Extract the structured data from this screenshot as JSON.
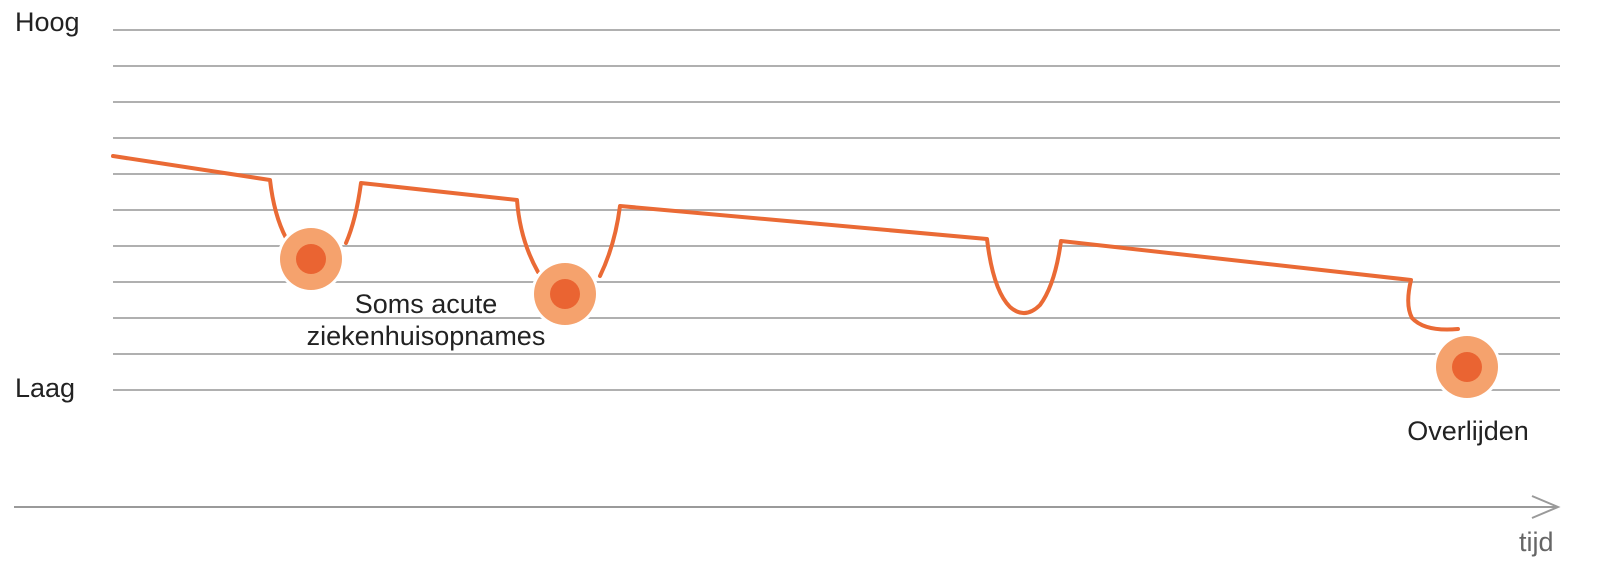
{
  "y_axis": {
    "high_label": "Hoog",
    "low_label": "Laag"
  },
  "x_axis": {
    "label": "tijd"
  },
  "annotations": {
    "hospital": "Soms acute\nziekenhuisopnames",
    "death": "Overlijden"
  },
  "colors": {
    "curve": "#EA6A35",
    "marker_outer": "#F5A26D",
    "marker_inner": "#EA6432",
    "gridline": "#B0B0B0",
    "axis": "#9A9A9A"
  },
  "icons": {
    "event_marker": "orange-dot-icon",
    "axis_arrow": "arrow-right-icon"
  }
}
